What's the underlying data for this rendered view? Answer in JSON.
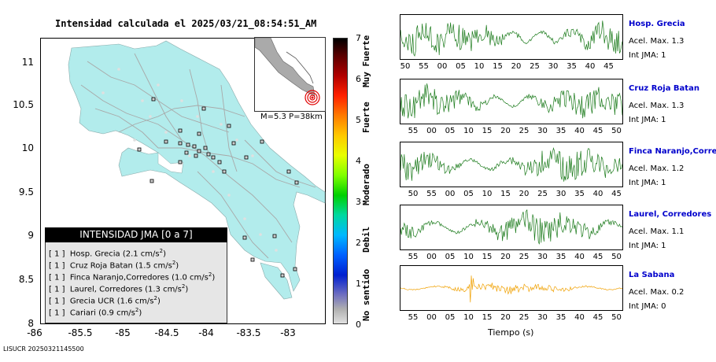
{
  "map": {
    "title": "Intensidad calculada el 2025/03/21_08:54:51_AM",
    "y_ticks": [
      "11",
      "10.5",
      "10",
      "9.5",
      "9",
      "8.5",
      "8"
    ],
    "x_ticks": [
      "-86",
      "-85.5",
      "-85",
      "-84.5",
      "-84",
      "-83.5",
      "-83"
    ],
    "stamp": "LISUCR 20250321145500",
    "colors": {
      "land": "#b2ecec",
      "sea": "#ffffff",
      "roads": "#a8a8a8",
      "stations": "#d8d8d8"
    }
  },
  "inset": {
    "label": "M=5.3 P=38km"
  },
  "legend": {
    "title": "INTENSIDAD JMA [0 a 7]",
    "rows": [
      {
        "level": "[ 1 ]",
        "text": "Hosp. Grecia (2.1 cm/s",
        "sup": "2",
        "close": ")"
      },
      {
        "level": "[ 1 ]",
        "text": "Cruz Roja Batan (1.5 cm/s",
        "sup": "2",
        "close": ")"
      },
      {
        "level": "[ 1 ]",
        "text": "Finca Naranjo,Corredores (1.0 cm/s",
        "sup": "2",
        "close": ")"
      },
      {
        "level": "[ 1 ]",
        "text": "Laurel, Corredores (1.3 cm/s",
        "sup": "2",
        "close": ")"
      },
      {
        "level": "[ 1 ]",
        "text": "Grecia UCR (1.6 cm/s",
        "sup": "2",
        "close": ")"
      },
      {
        "level": "[ 1 ]",
        "text": "Cariari (0.9 cm/s",
        "sup": "2",
        "close": ")"
      }
    ]
  },
  "colorbar": {
    "ticks": [
      "7",
      "6",
      "5",
      "4",
      "3",
      "2",
      "1",
      "0"
    ],
    "labels": [
      "Muy Fuerte",
      "Fuerte",
      "Moderado",
      "Debil",
      "No sentido"
    ]
  },
  "waveforms": {
    "xlabel": "Tiempo (s)",
    "stations": [
      {
        "name": "Hosp. Grecia",
        "accel": "Acel. Max. 1.3",
        "int": "Int JMA: 1",
        "color": "#1a7a1a",
        "ticks": [
          "50",
          "55",
          "00",
          "05",
          "10",
          "15",
          "20",
          "25",
          "30",
          "35",
          "40",
          "45"
        ]
      },
      {
        "name": "Cruz Roja Batan",
        "accel": "Acel. Max. 1.3",
        "int": "Int JMA: 1",
        "color": "#1a7a1a",
        "ticks": [
          "55",
          "00",
          "05",
          "10",
          "15",
          "20",
          "25",
          "30",
          "35",
          "40",
          "45",
          "50"
        ]
      },
      {
        "name": "Finca Naranjo,Corredores",
        "accel": "Acel. Max. 1.2",
        "int": "Int JMA: 1",
        "color": "#1a7a1a",
        "ticks": [
          "50",
          "55",
          "00",
          "05",
          "10",
          "15",
          "20",
          "25",
          "30",
          "35",
          "40",
          "45"
        ]
      },
      {
        "name": "Laurel, Corredores",
        "accel": "Acel. Max. 1.1",
        "int": "Int JMA: 1",
        "color": "#1a7a1a",
        "ticks": [
          "55",
          "00",
          "05",
          "10",
          "15",
          "20",
          "25",
          "30",
          "35",
          "40",
          "45",
          "50"
        ]
      },
      {
        "name": "La Sabana",
        "accel": "Acel. Max. 0.2",
        "int": "Int JMA: 0",
        "color": "#f0a000",
        "ticks": [
          "55",
          "00",
          "05",
          "10",
          "15",
          "20",
          "25",
          "30",
          "35",
          "40",
          "45",
          "50"
        ]
      }
    ]
  }
}
